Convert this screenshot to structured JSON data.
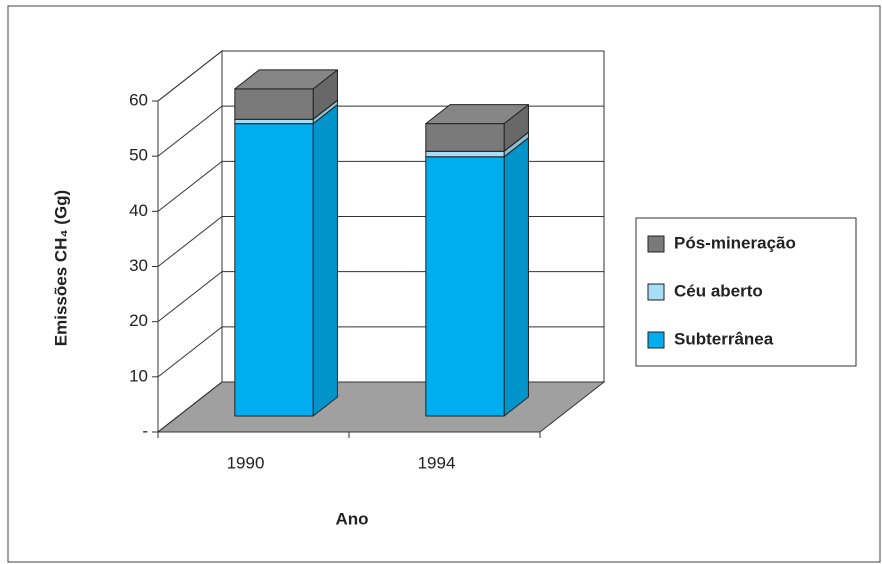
{
  "chart_data": {
    "type": "bar3d_stacked",
    "x_label": "Ano",
    "y_label": "Emissões CH₄ (Gg)",
    "categories": [
      "1990",
      "1994"
    ],
    "series": [
      {
        "name": "Subterrânea",
        "color": "#00aeef",
        "values": [
          53,
          47
        ]
      },
      {
        "name": "Céu aberto",
        "color": "#a6def6",
        "values": [
          0.8,
          1
        ]
      },
      {
        "name": "Pós-mineração",
        "color": "#7a7a7a",
        "values": [
          5.5,
          5
        ]
      }
    ],
    "ylim": [
      0,
      60
    ],
    "yticks": [
      {
        "value": 0,
        "label": "-"
      },
      10,
      20,
      30,
      40,
      50,
      60
    ],
    "grid": true,
    "legend": "right"
  }
}
